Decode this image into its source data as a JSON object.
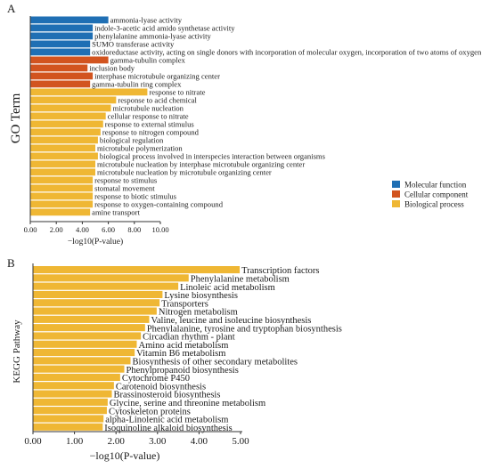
{
  "panels": {
    "a": {
      "letter": "A"
    },
    "b": {
      "letter": "B"
    }
  },
  "colors": {
    "molecular_function": "#1f6fb4",
    "cellular_component": "#d2541f",
    "biological_process": "#efb734",
    "axis": "#333333"
  },
  "chart_data": [
    {
      "type": "bar",
      "orientation": "horizontal",
      "ylabel": "GO Term",
      "xlabel": "−log10(P-value)",
      "xlim": [
        0,
        10
      ],
      "xticks": [
        "0.00",
        "2.00",
        "4.00",
        "6.00",
        "8.00",
        "10.00"
      ],
      "legend_position": "right",
      "legend": [
        {
          "key": "MF",
          "label": "Molecular function",
          "color": "#1f6fb4"
        },
        {
          "key": "CC",
          "label": "Cellular component",
          "color": "#d2541f"
        },
        {
          "key": "BP",
          "label": "Biological process",
          "color": "#efb734"
        }
      ],
      "categories": [
        "ammonia-lyase activity",
        "indole-3-acetic acid amido synthetase activity",
        "phenylalanine ammonia-lyase activity",
        "SUMO transferase activity",
        "oxidoreductase activity, acting on single donors with incorporation of molecular oxygen, incorporation of two atoms of oxygen",
        "gamma-tubulin complex",
        "inclusion body",
        "interphase microtubule organizing center",
        "gamma-tubulin ring complex",
        "response to nitrate",
        "response to acid chemical",
        "microtubule nucleation",
        "cellular response to nitrate",
        "response to external stimulus",
        "response to nitrogen compound",
        "biological regulation",
        "microtubule polymerization",
        "biological process involved in interspecies interaction between organisms",
        "microtubule nucleation by interphase microtubule organizing center",
        "microtubule nucleation by microtubule organizing center",
        "response to stimulus",
        "stomatal movement",
        "response to biotic stimulus",
        "response to oxygen-containing compound",
        "amine transport"
      ],
      "values": [
        6.0,
        4.8,
        4.8,
        4.6,
        4.6,
        6.0,
        4.4,
        4.8,
        4.6,
        9.0,
        6.6,
        6.2,
        5.8,
        5.6,
        5.4,
        5.2,
        5.0,
        5.2,
        5.0,
        5.0,
        4.8,
        4.8,
        4.8,
        4.8,
        4.6
      ],
      "groups": [
        "MF",
        "MF",
        "MF",
        "MF",
        "MF",
        "CC",
        "CC",
        "CC",
        "CC",
        "BP",
        "BP",
        "BP",
        "BP",
        "BP",
        "BP",
        "BP",
        "BP",
        "BP",
        "BP",
        "BP",
        "BP",
        "BP",
        "BP",
        "BP",
        "BP"
      ]
    },
    {
      "type": "bar",
      "orientation": "horizontal",
      "ylabel": "KEGG Pathway",
      "xlabel": "−log10(P-value)",
      "xlim": [
        0,
        5
      ],
      "xticks": [
        "0.00",
        "1.00",
        "2.00",
        "3.00",
        "4.00",
        "5.00"
      ],
      "color": "#efb734",
      "categories": [
        "Transcription factors",
        "Phenylalanine metabolism",
        "Linoleic acid metabolism",
        "Lysine biosynthesis",
        "Transporters",
        "Nitrogen metabolism",
        "Valine, leucine and isoleucine biosynthesis",
        "Phenylalanine, tyrosine and tryptophan biosynthesis",
        "Circadian rhythm - plant",
        "Amino acid metabolism",
        "Vitamin B6 metabolism",
        "Biosynthesis of other secondary metabolites",
        "Phenylpropanoid biosynthesis",
        "Cytochrome P450",
        "Carotenoid biosynthesis",
        "Brassinosteroid biosynthesis",
        "Glycine, serine and threonine metabolism",
        "Cytoskeleton proteins",
        "alpha-Linolenic acid metabolism",
        "Isoquinoline alkaloid biosynthesis"
      ],
      "values": [
        4.98,
        3.75,
        3.5,
        3.12,
        3.05,
        2.98,
        2.8,
        2.7,
        2.6,
        2.5,
        2.45,
        2.35,
        2.2,
        2.1,
        1.95,
        1.9,
        1.8,
        1.78,
        1.7,
        1.68
      ]
    }
  ]
}
